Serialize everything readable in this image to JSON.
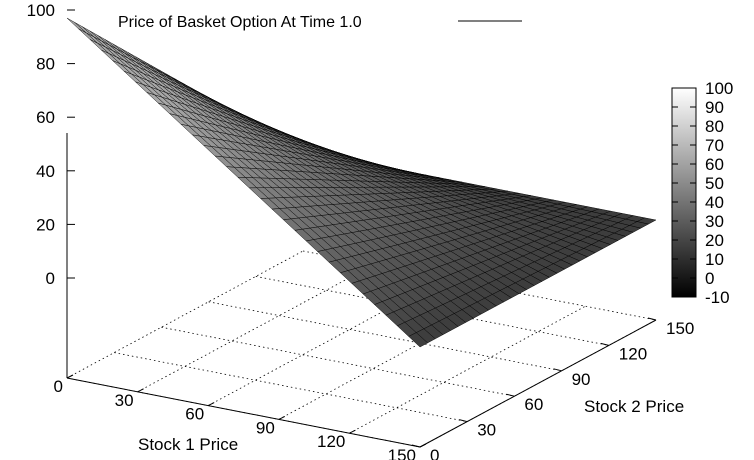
{
  "chart_data": {
    "type": "surface",
    "title": "",
    "legend": {
      "series_name": "Price of Basket Option At Time 1.0",
      "placement": "top"
    },
    "xlabel": "Stock 1 Price",
    "ylabel": "Stock 2 Price",
    "zlabel": "",
    "xlim": [
      0,
      150
    ],
    "ylim": [
      0,
      150
    ],
    "zlim": [
      -10,
      100
    ],
    "x_ticks": [
      "0",
      "30",
      "60",
      "90",
      "120",
      "150"
    ],
    "y_ticks": [
      "0",
      "30",
      "60",
      "90",
      "120",
      "150"
    ],
    "z_ticks": [
      "0",
      "20",
      "40",
      "60",
      "80",
      "100"
    ],
    "colorbar": {
      "range": [
        -10,
        100
      ],
      "ticks": [
        "-10",
        "0",
        "10",
        "20",
        "30",
        "40",
        "50",
        "60",
        "70",
        "80",
        "90",
        "100"
      ],
      "palette": "grayscale"
    },
    "grid": "dotted base grid",
    "surface_corners": [
      {
        "x": 0,
        "y": 0,
        "z": 97
      },
      {
        "x": 150,
        "y": 0,
        "z": 0
      },
      {
        "x": 150,
        "y": 150,
        "z": 0
      },
      {
        "x": 0,
        "y": 150,
        "z": 0
      }
    ],
    "mesh_resolution": 31,
    "colors": {
      "surface_light": "#a8a8a8",
      "surface_dark": "#3c3c3c",
      "mesh_line": "#000000",
      "grid_line": "#000000"
    }
  }
}
